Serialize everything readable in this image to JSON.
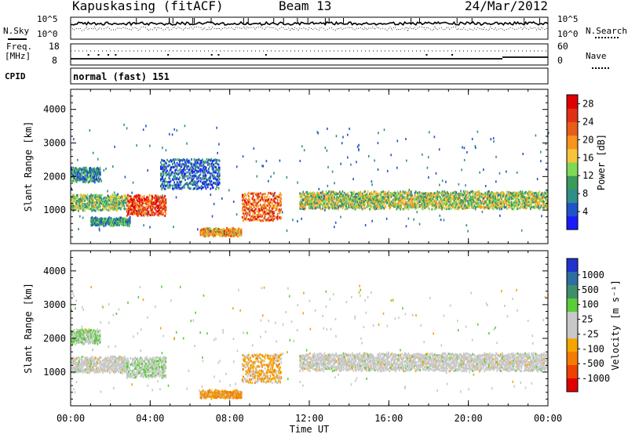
{
  "header": {
    "title": "Kapuskasing (fitACF)",
    "beam": "Beam 13",
    "date": "24/Mar/2012"
  },
  "summary_panels": {
    "nsky_label": "N.Sky",
    "nsky_ticks": [
      "10^5",
      "10^0"
    ],
    "nsearch_label": "N.Search",
    "freq_label_1": "Freq.",
    "freq_label_2": "[MHz]",
    "freq_ticks": [
      "18",
      "8"
    ],
    "nave_label": "Nave",
    "nave_ticks": [
      "60",
      "0"
    ],
    "cpid_label": "CPID",
    "cpid_value": "normal (fast) 151"
  },
  "colors": {
    "power_scale": [
      "#1a1aff",
      "#1f54c8",
      "#2f8f8a",
      "#3c9a5a",
      "#7ed957",
      "#f7c33a",
      "#f7941d",
      "#e85d1a",
      "#e23015",
      "#e00000"
    ],
    "velocity_scale": [
      "#2233cc",
      "#2d6ea3",
      "#3e8f6a",
      "#5bcc3a",
      "#c8c8c8",
      "#c8c8c8",
      "#f5a500",
      "#f57c00",
      "#f04000",
      "#e00000"
    ]
  },
  "chart_data": [
    {
      "type": "heatmap",
      "title": "Power",
      "xlabel": "Time UT",
      "ylabel": "Slant Range [km]",
      "x_ticks": [
        "00:00",
        "04:00",
        "08:00",
        "12:00",
        "16:00",
        "20:00",
        "00:00"
      ],
      "y_ticks": [
        1000,
        2000,
        3000,
        4000
      ],
      "ylim": [
        0,
        4600
      ],
      "colorbar_label": "Power [dB]",
      "colorbar_ticks": [
        "4",
        "8",
        "12",
        "16",
        "20",
        "24",
        "28"
      ],
      "colorbar_range": [
        0,
        30
      ],
      "echo_regions_hours_km": [
        {
          "t0": 0.0,
          "t1": 2.8,
          "r0": 1050,
          "r1": 1500,
          "dB": 12
        },
        {
          "t0": 2.8,
          "t1": 4.8,
          "r0": 900,
          "r1": 1500,
          "dB": 26
        },
        {
          "t0": 0.0,
          "t1": 1.5,
          "r0": 1900,
          "r1": 2300,
          "dB": 8
        },
        {
          "t0": 1.0,
          "t1": 3.0,
          "r0": 600,
          "r1": 800,
          "dB": 8
        },
        {
          "t0": 6.5,
          "t1": 8.6,
          "r0": 280,
          "r1": 480,
          "dB": 20
        },
        {
          "t0": 8.6,
          "t1": 10.6,
          "r0": 750,
          "r1": 1600,
          "dB": 24
        },
        {
          "t0": 11.5,
          "t1": 24.0,
          "r0": 1100,
          "r1": 1600,
          "dB": 14
        },
        {
          "t0": 4.5,
          "t1": 7.5,
          "r0": 1700,
          "r1": 2600,
          "dB": 4
        }
      ]
    },
    {
      "type": "heatmap",
      "title": "Velocity",
      "xlabel": "Time UT",
      "ylabel": "Slant Range [km]",
      "x_ticks": [
        "00:00",
        "04:00",
        "08:00",
        "12:00",
        "16:00",
        "20:00",
        "00:00"
      ],
      "y_ticks": [
        1000,
        2000,
        3000,
        4000
      ],
      "ylim": [
        0,
        4600
      ],
      "colorbar_label": "Velocity [m s⁻¹]",
      "colorbar_ticks": [
        "1000",
        "500",
        "100",
        "25",
        "-25",
        "-100",
        "-500",
        "-1000"
      ],
      "echo_regions_hours_km": [
        {
          "t0": 0.0,
          "t1": 2.8,
          "r0": 1050,
          "r1": 1500,
          "v": 0
        },
        {
          "t0": 2.8,
          "t1": 4.8,
          "r0": 900,
          "r1": 1500,
          "v": 150
        },
        {
          "t0": 0.0,
          "t1": 1.5,
          "r0": 1900,
          "r1": 2300,
          "v": 200
        },
        {
          "t0": 6.5,
          "t1": 8.6,
          "r0": 280,
          "r1": 480,
          "v": -400
        },
        {
          "t0": 8.6,
          "t1": 10.6,
          "r0": 750,
          "r1": 1600,
          "v": -300
        },
        {
          "t0": 11.5,
          "t1": 24.0,
          "r0": 1100,
          "r1": 1600,
          "v": 0
        }
      ]
    }
  ]
}
